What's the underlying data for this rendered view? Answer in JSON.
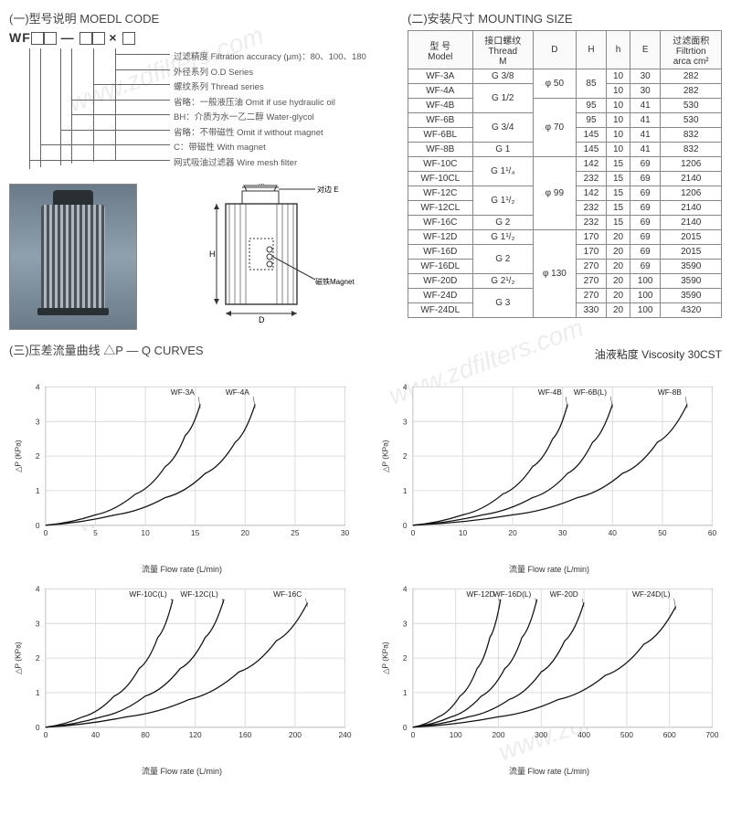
{
  "modelCode": {
    "title": "(一)型号说明  MOEDL CODE",
    "code_prefix": "WF",
    "legend": [
      {
        "cn": "过滤精度",
        "en": "Filtration accuracy (μm)：80、100、180"
      },
      {
        "cn": "外径系列",
        "en": "O.D Series"
      },
      {
        "cn": "螺纹系列",
        "en": "Thread series"
      },
      {
        "cn": "省略：一般液压油",
        "en": "Omit if use hydraulic oil"
      },
      {
        "cn": "BH：介质为水一乙二醇",
        "en": "Water-glycol"
      },
      {
        "cn": "省略：不带磁性",
        "en": "Omit if without magnet"
      },
      {
        "cn": "C：带磁性",
        "en": "With magnet"
      },
      {
        "cn": "网式吸油过滤器",
        "en": "Wire mesh filter"
      }
    ],
    "schematic_labels": {
      "M": "M",
      "E": "对边 E",
      "H": "H",
      "D": "D",
      "magnet": "磁铁Magnet"
    }
  },
  "mounting": {
    "title": "(二)安装尺寸  MOUNTING SIZE",
    "headers": {
      "model": {
        "cn": "型 号",
        "en": "Model"
      },
      "thread": {
        "cn": "接口螺纹",
        "en": "Thread",
        "unit": "M"
      },
      "D": "D",
      "H": "H",
      "h": "h",
      "E": "E",
      "filt": {
        "cn": "过滤面积",
        "en": "Filtrtion",
        "unit": "arca cm²"
      }
    },
    "rows": [
      {
        "model": "WF-3A",
        "thread": "G 3/8",
        "D": "φ 50",
        "H": "85",
        "h": "10",
        "E": "30",
        "filt": "282"
      },
      {
        "model": "WF-4A",
        "thread": "G 1/2",
        "D": "",
        "H": "",
        "h": "10",
        "E": "30",
        "filt": "282"
      },
      {
        "model": "WF-4B",
        "thread": "",
        "D": "",
        "H": "95",
        "h": "10",
        "E": "41",
        "filt": "530"
      },
      {
        "model": "WF-6B",
        "thread": "G 3/4",
        "D": "φ 70",
        "H": "95",
        "h": "10",
        "E": "41",
        "filt": "530"
      },
      {
        "model": "WF-6BL",
        "thread": "",
        "D": "",
        "H": "145",
        "h": "10",
        "E": "41",
        "filt": "832"
      },
      {
        "model": "WF-8B",
        "thread": "G 1",
        "D": "",
        "H": "145",
        "h": "10",
        "E": "41",
        "filt": "832"
      },
      {
        "model": "WF-10C",
        "thread": "G 1¹/₄",
        "D": "",
        "H": "142",
        "h": "15",
        "E": "69",
        "filt": "1206"
      },
      {
        "model": "WF-10CL",
        "thread": "",
        "D": "φ 99",
        "H": "232",
        "h": "15",
        "E": "69",
        "filt": "2140"
      },
      {
        "model": "WF-12C",
        "thread": "G 1¹/₂",
        "D": "",
        "H": "142",
        "h": "15",
        "E": "69",
        "filt": "1206"
      },
      {
        "model": "WF-12CL",
        "thread": "",
        "D": "",
        "H": "232",
        "h": "15",
        "E": "69",
        "filt": "2140"
      },
      {
        "model": "WF-16C",
        "thread": "G 2",
        "D": "",
        "H": "232",
        "h": "15",
        "E": "69",
        "filt": "2140"
      },
      {
        "model": "WF-12D",
        "thread": "G 1¹/₂",
        "D": "",
        "H": "170",
        "h": "20",
        "E": "69",
        "filt": "2015"
      },
      {
        "model": "WF-16D",
        "thread": "G 2",
        "D": "",
        "H": "170",
        "h": "20",
        "E": "69",
        "filt": "2015"
      },
      {
        "model": "WF-16DL",
        "thread": "",
        "D": "φ 130",
        "H": "270",
        "h": "20",
        "E": "69",
        "filt": "3590"
      },
      {
        "model": "WF-20D",
        "thread": "G 2¹/₂",
        "D": "",
        "H": "270",
        "h": "20",
        "E": "100",
        "filt": "3590"
      },
      {
        "model": "WF-24D",
        "thread": "G 3",
        "D": "",
        "H": "270",
        "h": "20",
        "E": "100",
        "filt": "3590"
      },
      {
        "model": "WF-24DL",
        "thread": "",
        "D": "",
        "H": "330",
        "h": "20",
        "E": "100",
        "filt": "4320"
      }
    ],
    "thread_rowspans": [
      1,
      2,
      2,
      1,
      2,
      2,
      1,
      1,
      2,
      1,
      2
    ],
    "D_spans": [
      {
        "start": 0,
        "span": 2,
        "val": "φ 50"
      },
      {
        "start": 2,
        "span": 4,
        "val": "φ 70"
      },
      {
        "start": 6,
        "span": 5,
        "val": "φ 99"
      },
      {
        "start": 11,
        "span": 6,
        "val": "φ 130"
      }
    ],
    "H_spans": [
      {
        "start": 0,
        "span": 2,
        "val": "85"
      }
    ]
  },
  "curves": {
    "title": "(三)压差流量曲线  △P — Q  CURVES",
    "viscosity": {
      "cn": "油液粘度",
      "en": "Viscosity",
      "val": "30CST"
    },
    "ylabel": "△P (KPa)",
    "xlabel": "流量 Flow rate (L/min)",
    "ylim": [
      0,
      4
    ],
    "yticks": [
      0,
      1,
      2,
      3,
      4
    ],
    "line_color": "#111",
    "line_width": 1.2,
    "grid_color": "#ddd",
    "bg": "#fff",
    "border": "#555",
    "axis_font": 8,
    "charts": [
      {
        "xlim": [
          0,
          30
        ],
        "xticks": [
          0,
          5,
          10,
          15,
          20,
          25,
          30
        ],
        "series": [
          {
            "label": "WF-3A",
            "pts": [
              [
                0,
                0
              ],
              [
                5,
                0.3
              ],
              [
                9,
                0.9
              ],
              [
                12,
                1.7
              ],
              [
                14,
                2.6
              ],
              [
                15.5,
                3.5
              ]
            ]
          },
          {
            "label": "WF-4A",
            "pts": [
              [
                0,
                0
              ],
              [
                7,
                0.3
              ],
              [
                12,
                0.8
              ],
              [
                16,
                1.5
              ],
              [
                19,
                2.4
              ],
              [
                21,
                3.5
              ]
            ]
          }
        ]
      },
      {
        "xlim": [
          0,
          60
        ],
        "xticks": [
          0,
          10,
          20,
          30,
          40,
          50,
          60
        ],
        "series": [
          {
            "label": "WF-4B",
            "pts": [
              [
                0,
                0
              ],
              [
                10,
                0.3
              ],
              [
                18,
                0.9
              ],
              [
                24,
                1.7
              ],
              [
                28,
                2.5
              ],
              [
                31,
                3.5
              ]
            ]
          },
          {
            "label": "WF-6B(L)",
            "pts": [
              [
                0,
                0
              ],
              [
                14,
                0.3
              ],
              [
                24,
                0.8
              ],
              [
                31,
                1.5
              ],
              [
                36,
                2.4
              ],
              [
                40,
                3.5
              ]
            ]
          },
          {
            "label": "WF-8B",
            "pts": [
              [
                0,
                0
              ],
              [
                20,
                0.3
              ],
              [
                33,
                0.8
              ],
              [
                42,
                1.5
              ],
              [
                49,
                2.4
              ],
              [
                55,
                3.5
              ]
            ]
          }
        ]
      },
      {
        "xlim": [
          0,
          240
        ],
        "xticks": [
          0,
          40,
          80,
          120,
          160,
          200,
          240
        ],
        "series": [
          {
            "label": "WF-10C(L)",
            "pts": [
              [
                0,
                0
              ],
              [
                30,
                0.3
              ],
              [
                55,
                0.9
              ],
              [
                75,
                1.7
              ],
              [
                90,
                2.6
              ],
              [
                102,
                3.7
              ]
            ]
          },
          {
            "label": "WF-12C(L)",
            "pts": [
              [
                0,
                0
              ],
              [
                45,
                0.3
              ],
              [
                80,
                0.9
              ],
              [
                108,
                1.7
              ],
              [
                128,
                2.6
              ],
              [
                143,
                3.7
              ]
            ]
          },
          {
            "label": "WF-16C",
            "pts": [
              [
                0,
                0
              ],
              [
                65,
                0.3
              ],
              [
                115,
                0.8
              ],
              [
                155,
                1.6
              ],
              [
                185,
                2.5
              ],
              [
                210,
                3.6
              ]
            ]
          }
        ]
      },
      {
        "xlim": [
          0,
          700
        ],
        "xticks": [
          0,
          100,
          200,
          300,
          400,
          500,
          600,
          700
        ],
        "series": [
          {
            "label": "WF-12D",
            "pts": [
              [
                0,
                0
              ],
              [
                60,
                0.3
              ],
              [
                110,
                0.9
              ],
              [
                150,
                1.7
              ],
              [
                180,
                2.6
              ],
              [
                205,
                3.7
              ]
            ]
          },
          {
            "label": "WF-16D(L)",
            "pts": [
              [
                0,
                0
              ],
              [
                90,
                0.3
              ],
              [
                160,
                0.9
              ],
              [
                215,
                1.7
              ],
              [
                255,
                2.6
              ],
              [
                290,
                3.7
              ]
            ]
          },
          {
            "label": "WF-20D",
            "pts": [
              [
                0,
                0
              ],
              [
                130,
                0.3
              ],
              [
                225,
                0.8
              ],
              [
                300,
                1.6
              ],
              [
                355,
                2.5
              ],
              [
                400,
                3.6
              ]
            ]
          },
          {
            "label": "WF-24D(L)",
            "pts": [
              [
                0,
                0
              ],
              [
                200,
                0.3
              ],
              [
                340,
                0.8
              ],
              [
                450,
                1.5
              ],
              [
                540,
                2.4
              ],
              [
                615,
                3.5
              ]
            ]
          }
        ]
      }
    ]
  },
  "watermark": "www.zdfilters.com"
}
